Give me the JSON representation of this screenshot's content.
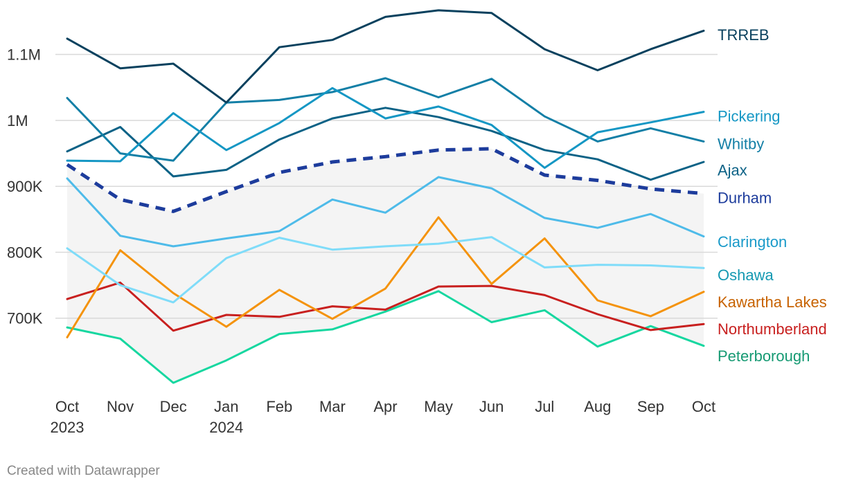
{
  "chart_data": {
    "type": "line",
    "title": "",
    "xlabel": "",
    "ylabel": "",
    "categories": [
      "Oct 2023",
      "Nov",
      "Dec",
      "Jan 2024",
      "Feb",
      "Mar",
      "Apr",
      "May",
      "Jun",
      "Jul",
      "Aug",
      "Sep",
      "Oct"
    ],
    "x_tick_labels": [
      {
        "line1": "Oct",
        "line2": "2023"
      },
      {
        "line1": "Nov",
        "line2": ""
      },
      {
        "line1": "Dec",
        "line2": ""
      },
      {
        "line1": "Jan",
        "line2": "2024"
      },
      {
        "line1": "Feb",
        "line2": ""
      },
      {
        "line1": "Mar",
        "line2": ""
      },
      {
        "line1": "Apr",
        "line2": ""
      },
      {
        "line1": "May",
        "line2": ""
      },
      {
        "line1": "Jun",
        "line2": ""
      },
      {
        "line1": "Jul",
        "line2": ""
      },
      {
        "line1": "Aug",
        "line2": ""
      },
      {
        "line1": "Sep",
        "line2": ""
      },
      {
        "line1": "Oct",
        "line2": ""
      }
    ],
    "y_ticks": [
      {
        "value": 700000,
        "label": "700K"
      },
      {
        "value": 800000,
        "label": "800K"
      },
      {
        "value": 900000,
        "label": "900K"
      },
      {
        "value": 1000000,
        "label": "1M"
      },
      {
        "value": 1100000,
        "label": "1.1M"
      }
    ],
    "ylim": [
      600000,
      1170000
    ],
    "grid": true,
    "band": {
      "color": "#f4f4f4",
      "description": "shaded range"
    },
    "series": [
      {
        "name": "TRREB",
        "color": "#09415e",
        "label_color": "#09415e",
        "dashed": false,
        "width": 3,
        "values": [
          1124000,
          1079000,
          1086000,
          1027000,
          1111000,
          1122000,
          1157000,
          1167000,
          1163000,
          1108000,
          1076000,
          1108000,
          1136000
        ]
      },
      {
        "name": "Pickering",
        "color": "#1597c4",
        "label_color": "#1597c4",
        "dashed": false,
        "width": 3,
        "values": [
          939000,
          938000,
          1011000,
          955000,
          996000,
          1049000,
          1003000,
          1021000,
          993000,
          928000,
          982000,
          997000,
          1013000
        ]
      },
      {
        "name": "Whitby",
        "color": "#137fa6",
        "label_color": "#137fa6",
        "dashed": false,
        "width": 3,
        "values": [
          1034000,
          950000,
          939000,
          1027000,
          1031000,
          1043000,
          1064000,
          1035000,
          1063000,
          1006000,
          968000,
          988000,
          968000
        ]
      },
      {
        "name": "Ajax",
        "color": "#0c6286",
        "label_color": "#0c6286",
        "dashed": false,
        "width": 3,
        "values": [
          953000,
          990000,
          915000,
          925000,
          971000,
          1003000,
          1019000,
          1005000,
          984000,
          955000,
          941000,
          910000,
          937000
        ]
      },
      {
        "name": "Durham",
        "color": "#1d3c9c",
        "label_color": "#1d3c9c",
        "dashed": true,
        "width": 5,
        "values": [
          933000,
          880000,
          862000,
          892000,
          921000,
          937000,
          945000,
          955000,
          957000,
          917000,
          909000,
          896000,
          889000
        ]
      },
      {
        "name": "Clarington",
        "color": "#4ebbe9",
        "label_color": "#1a9ac9",
        "dashed": false,
        "width": 3,
        "values": [
          912000,
          825000,
          809000,
          821000,
          832000,
          880000,
          860000,
          914000,
          897000,
          852000,
          837000,
          858000,
          824000
        ]
      },
      {
        "name": "Oshawa",
        "color": "#7fdcf9",
        "label_color": "#1599b2",
        "dashed": false,
        "width": 3,
        "values": [
          806000,
          750000,
          724000,
          791000,
          822000,
          804000,
          809000,
          813000,
          823000,
          777000,
          781000,
          780000,
          776000
        ]
      },
      {
        "name": "Kawartha Lakes",
        "color": "#f4930d",
        "label_color": "#c76200",
        "dashed": false,
        "width": 3,
        "values": [
          671000,
          803000,
          738000,
          687000,
          743000,
          699000,
          745000,
          853000,
          752000,
          821000,
          727000,
          703000,
          740000
        ]
      },
      {
        "name": "Northumberland",
        "color": "#c8201f",
        "label_color": "#c8201f",
        "dashed": false,
        "width": 3,
        "values": [
          729000,
          754000,
          681000,
          705000,
          702000,
          718000,
          713000,
          748000,
          749000,
          735000,
          706000,
          682000,
          691000
        ]
      },
      {
        "name": "Peterborough",
        "color": "#17d7a0",
        "label_color": "#169a73",
        "dashed": false,
        "width": 3,
        "values": [
          686000,
          669000,
          602000,
          636000,
          676000,
          683000,
          710000,
          741000,
          694000,
          712000,
          657000,
          688000,
          658000
        ]
      }
    ],
    "label_order_y": [
      1130000,
      1007000,
      965000,
      925000,
      883000,
      816000,
      766000,
      725000,
      684000,
      643000
    ],
    "legend": "direct-labels-right"
  },
  "footer": {
    "credit": "Created with Datawrapper"
  }
}
